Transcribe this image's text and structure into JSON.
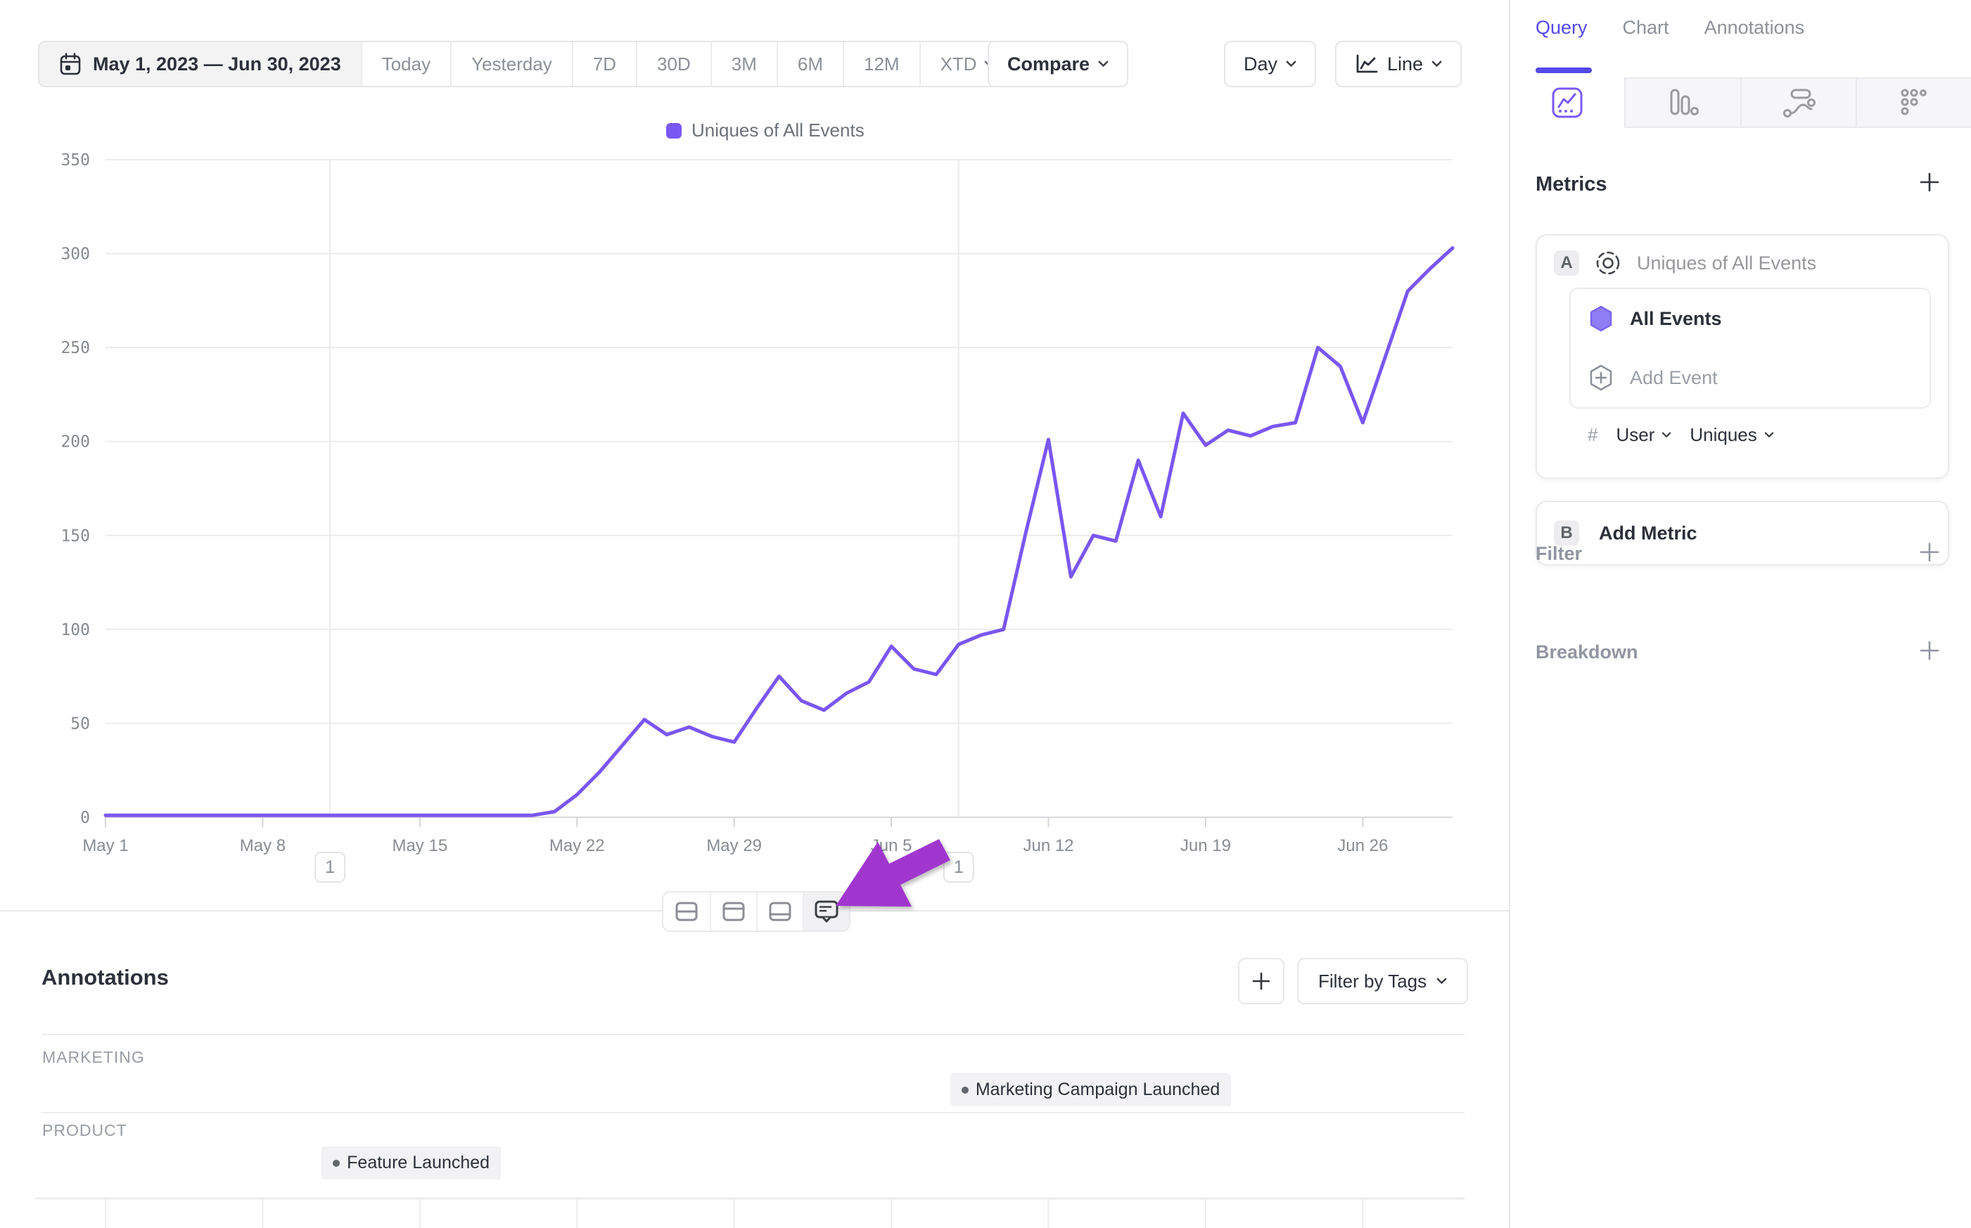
{
  "colors": {
    "accent_purple": "#7a56f2",
    "tab_purple": "#5349e8",
    "arrow_purple": "#a136cf",
    "text_dark": "#2c3039",
    "text_grey": "#8b9097"
  },
  "toolbar": {
    "date_range": "May 1, 2023 — Jun 30, 2023",
    "presets": [
      "Today",
      "Yesterday",
      "7D",
      "30D",
      "3M",
      "6M",
      "12M",
      "XTD"
    ],
    "compare_label": "Compare",
    "granularity_label": "Day",
    "chart_type_label": "Line"
  },
  "legend": {
    "label": "Uniques of All Events",
    "color": "#7a56f2"
  },
  "chart_data": {
    "type": "line",
    "title": "Uniques of All Events",
    "series_name": "Uniques of All Events",
    "series_color": "#7a56f2",
    "ylim": [
      0,
      350
    ],
    "y_ticks": [
      0,
      50,
      100,
      150,
      200,
      250,
      300,
      350
    ],
    "x_tick_labels": [
      "May 1",
      "May 8",
      "May 15",
      "May 22",
      "May 29",
      "Jun 5",
      "Jun 12",
      "Jun 19",
      "Jun 26"
    ],
    "x_tick_day_indices": [
      0,
      7,
      14,
      21,
      28,
      35,
      42,
      49,
      56
    ],
    "x": [
      "May 1",
      "May 2",
      "May 3",
      "May 4",
      "May 5",
      "May 6",
      "May 7",
      "May 8",
      "May 9",
      "May 10",
      "May 11",
      "May 12",
      "May 13",
      "May 14",
      "May 15",
      "May 16",
      "May 17",
      "May 18",
      "May 19",
      "May 20",
      "May 21",
      "May 22",
      "May 23",
      "May 24",
      "May 25",
      "May 26",
      "May 27",
      "May 28",
      "May 29",
      "May 30",
      "May 31",
      "Jun 1",
      "Jun 2",
      "Jun 3",
      "Jun 4",
      "Jun 5",
      "Jun 6",
      "Jun 7",
      "Jun 8",
      "Jun 9",
      "Jun 10",
      "Jun 11",
      "Jun 12",
      "Jun 13",
      "Jun 14",
      "Jun 15",
      "Jun 16",
      "Jun 17",
      "Jun 18",
      "Jun 19",
      "Jun 20",
      "Jun 21",
      "Jun 22",
      "Jun 23",
      "Jun 24",
      "Jun 25",
      "Jun 26",
      "Jun 27",
      "Jun 28",
      "Jun 29",
      "Jun 30"
    ],
    "values": [
      1,
      1,
      1,
      1,
      1,
      1,
      1,
      1,
      1,
      1,
      1,
      1,
      1,
      1,
      1,
      1,
      1,
      1,
      1,
      1,
      3,
      12,
      24,
      38,
      52,
      44,
      48,
      43,
      40,
      58,
      75,
      62,
      57,
      66,
      72,
      91,
      79,
      76,
      92,
      97,
      100,
      152,
      201,
      128,
      150,
      147,
      190,
      160,
      215,
      198,
      206,
      203,
      208,
      210,
      250,
      240,
      210,
      245,
      280,
      292,
      303
    ],
    "annotation_markers": [
      {
        "day_index": 10,
        "badge": "1"
      },
      {
        "day_index": 38,
        "badge": "1"
      }
    ],
    "grid": true,
    "legend_position": "top-center"
  },
  "mini_toolbar": {
    "items": [
      "split-horizontal-layout",
      "panel-top-layout",
      "panel-bottom-layout",
      "annotations-comment"
    ],
    "active_index": 3
  },
  "annotations_panel": {
    "title": "Annotations",
    "add_label": "+",
    "filter_by_tags_label": "Filter by Tags",
    "groups": [
      {
        "name": "MARKETING",
        "items": [
          {
            "label": "Marketing Campaign Launched",
            "day_index": 38
          }
        ]
      },
      {
        "name": "PRODUCT",
        "items": [
          {
            "label": "Feature Launched",
            "day_index": 10
          }
        ]
      }
    ]
  },
  "sidebar": {
    "tabs": [
      {
        "label": "Query",
        "active": true
      },
      {
        "label": "Chart",
        "active": false
      },
      {
        "label": "Annotations",
        "active": false
      }
    ],
    "chart_type_tabs": [
      "insights-line",
      "bar-chart",
      "flows",
      "funnel-dots"
    ],
    "metrics": {
      "title": "Metrics",
      "metric_a": {
        "badge": "A",
        "name": "Uniques of All Events",
        "event_label": "All Events",
        "add_event_label": "Add Event",
        "value_symbol": "#",
        "entity": "User",
        "aggregation": "Uniques"
      },
      "metric_b": {
        "badge": "B",
        "label": "Add Metric"
      }
    },
    "filter": {
      "label": "Filter"
    },
    "breakdown": {
      "label": "Breakdown"
    }
  }
}
